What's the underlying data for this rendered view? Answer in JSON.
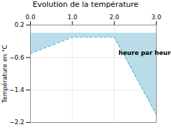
{
  "chart_data": {
    "type": "area",
    "title": "Evolution de la température",
    "ylabel": "Température en °C",
    "x": [
      0,
      1,
      2,
      3
    ],
    "series": [
      {
        "type": "area",
        "color": "#b8dde8",
        "values": [
          -0.5,
          -0.1,
          -0.1,
          -2.0
        ]
      },
      {
        "type": "line",
        "color": "#5ab4cc",
        "line_style": "dashed",
        "values": [
          -0.5,
          -0.1,
          -0.1,
          -2.0
        ]
      }
    ],
    "xlim": [
      0,
      3
    ],
    "xticks": [
      0,
      1,
      2,
      3
    ],
    "ylim": [
      -2.2,
      0.2
    ],
    "yticks": [
      0.2,
      -0.6,
      -1.4,
      -2.2
    ],
    "grid": true,
    "annotations": [
      {
        "text": "heure par heure",
        "x": 2.1,
        "y": -0.42
      }
    ]
  }
}
